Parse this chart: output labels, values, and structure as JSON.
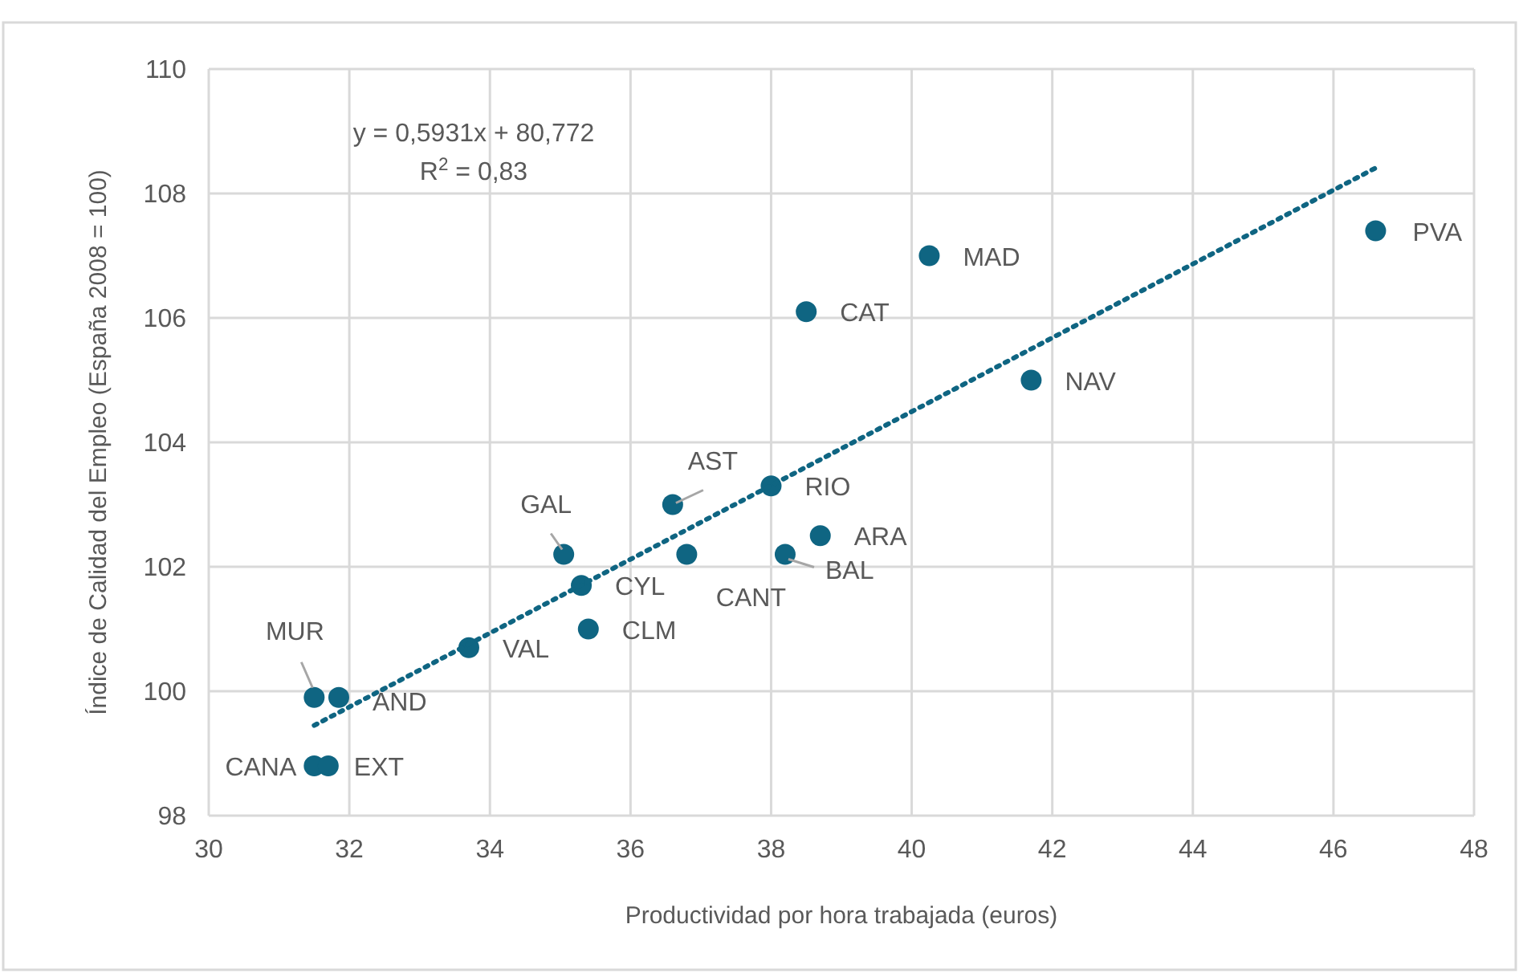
{
  "chart_data": {
    "type": "scatter",
    "xlabel": "Productividad por hora trabajada (euros)",
    "ylabel": "Índice de Calidad del Empleo (España 2008 = 100)",
    "xlim": [
      30,
      48
    ],
    "xticks": [
      30,
      32,
      34,
      36,
      38,
      40,
      42,
      44,
      46,
      48
    ],
    "ylim": [
      98,
      110
    ],
    "yticks": [
      98,
      100,
      102,
      104,
      106,
      108,
      110
    ],
    "grid": true,
    "marker": "circle",
    "series": [
      {
        "color": "#0f6582",
        "x": [
          31.5,
          31.85,
          31.5,
          31.7,
          33.7,
          35.05,
          35.3,
          35.4,
          36.6,
          36.8,
          38.0,
          38.2,
          38.7,
          38.5,
          40.25,
          41.7,
          46.6
        ],
        "values": [
          99.9,
          99.9,
          98.8,
          98.8,
          100.7,
          102.2,
          101.7,
          101.0,
          103.0,
          102.2,
          103.3,
          102.2,
          102.5,
          106.1,
          107.0,
          105.0,
          107.4
        ]
      },
      {
        "type": "line",
        "color": "#0f6582",
        "line_style": "dotted",
        "marker": "none",
        "x": [
          31.5,
          46.6
        ],
        "values": [
          99.45,
          108.41
        ]
      }
    ],
    "annotations": [
      "y = 0,5931x + 80,772",
      "R$^{2}$ = 0,83",
      {
        "text": "MUR",
        "x": 31.5,
        "y": 99.9
      },
      {
        "text": "AND",
        "x": 31.85,
        "y": 99.9
      },
      {
        "text": "CANA",
        "x": 31.5,
        "y": 98.8
      },
      {
        "text": "EXT",
        "x": 31.7,
        "y": 98.8
      },
      {
        "text": "VAL",
        "x": 33.7,
        "y": 100.7
      },
      {
        "text": "GAL",
        "x": 35.05,
        "y": 102.2
      },
      {
        "text": "CYL",
        "x": 35.3,
        "y": 101.7
      },
      {
        "text": "CLM",
        "x": 35.4,
        "y": 101.0
      },
      {
        "text": "AST",
        "x": 36.6,
        "y": 103.0
      },
      {
        "text": "CANT",
        "x": 36.8,
        "y": 102.2
      },
      {
        "text": "RIO",
        "x": 38.0,
        "y": 103.3
      },
      {
        "text": "BAL",
        "x": 38.2,
        "y": 102.2
      },
      {
        "text": "ARA",
        "x": 38.7,
        "y": 102.5
      },
      {
        "text": "CAT",
        "x": 38.5,
        "y": 106.1
      },
      {
        "text": "MAD",
        "x": 40.25,
        "y": 107.0
      },
      {
        "text": "NAV",
        "x": 41.7,
        "y": 105.0
      },
      {
        "text": "PVA",
        "x": 46.6,
        "y": 107.4
      }
    ]
  }
}
